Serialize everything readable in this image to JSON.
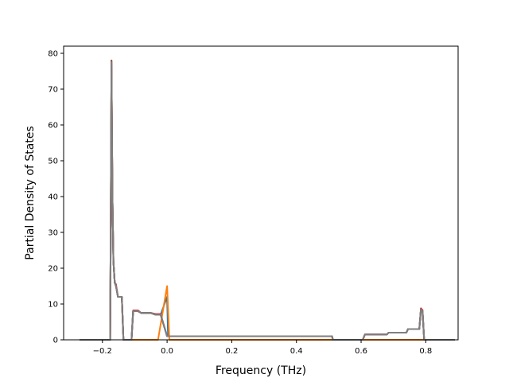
{
  "chart_data": {
    "type": "line",
    "title": "",
    "xlabel": "Frequency (THz)",
    "ylabel": "Partial Density of States",
    "xlim": [
      -0.32,
      0.9
    ],
    "ylim": [
      0,
      82
    ],
    "xticks": [
      -0.2,
      0.0,
      0.2,
      0.4,
      0.6,
      0.8
    ],
    "xtick_labels": [
      "−0.2",
      "0.0",
      "0.2",
      "0.4",
      "0.6",
      "0.8"
    ],
    "yticks": [
      0,
      10,
      20,
      30,
      40,
      50,
      60,
      70,
      80
    ],
    "ytick_labels": [
      "0",
      "10",
      "20",
      "30",
      "40",
      "50",
      "60",
      "70",
      "80"
    ],
    "grid": false,
    "legend": "none",
    "series": [
      {
        "color": "#1f77b4",
        "points": [
          [
            -0.27,
            0
          ],
          [
            -0.176,
            0
          ],
          [
            -0.172,
            72
          ],
          [
            -0.169,
            40
          ],
          [
            -0.166,
            22
          ],
          [
            -0.162,
            16
          ],
          [
            -0.158,
            15
          ],
          [
            -0.152,
            12
          ],
          [
            -0.14,
            12
          ],
          [
            -0.135,
            0
          ],
          [
            -0.11,
            0
          ],
          [
            -0.105,
            8
          ],
          [
            -0.09,
            8
          ],
          [
            -0.08,
            7.5
          ],
          [
            -0.05,
            7.5
          ],
          [
            -0.035,
            7
          ],
          [
            -0.02,
            7
          ],
          [
            0.0,
            12
          ],
          [
            0.003,
            1
          ],
          [
            0.07,
            1
          ],
          [
            0.15,
            1
          ],
          [
            0.51,
            1
          ],
          [
            0.513,
            0
          ],
          [
            0.605,
            0
          ],
          [
            0.612,
            1.5
          ],
          [
            0.68,
            1.5
          ],
          [
            0.685,
            2
          ],
          [
            0.74,
            2
          ],
          [
            0.745,
            3
          ],
          [
            0.78,
            3
          ],
          [
            0.785,
            8.5
          ],
          [
            0.79,
            8
          ],
          [
            0.795,
            0
          ],
          [
            0.89,
            0
          ]
        ]
      },
      {
        "color": "#ff7f0e",
        "points": [
          [
            -0.27,
            0
          ],
          [
            -0.176,
            0
          ],
          [
            -0.172,
            78
          ],
          [
            -0.169,
            40
          ],
          [
            -0.166,
            22
          ],
          [
            -0.162,
            16
          ],
          [
            -0.158,
            15
          ],
          [
            -0.152,
            12
          ],
          [
            -0.14,
            12
          ],
          [
            -0.135,
            0
          ],
          [
            -0.028,
            0
          ],
          [
            0.0,
            15
          ],
          [
            0.007,
            0
          ],
          [
            0.89,
            0
          ]
        ]
      },
      {
        "color": "#2ca02c",
        "points": [
          [
            -0.27,
            0
          ],
          [
            -0.176,
            0
          ],
          [
            -0.172,
            76
          ],
          [
            -0.169,
            40
          ],
          [
            -0.166,
            22
          ],
          [
            -0.162,
            16
          ],
          [
            -0.158,
            15
          ],
          [
            -0.152,
            12
          ],
          [
            -0.14,
            12
          ],
          [
            -0.135,
            0
          ],
          [
            -0.11,
            0
          ],
          [
            -0.105,
            8
          ],
          [
            -0.09,
            8
          ],
          [
            -0.08,
            7.5
          ],
          [
            -0.05,
            7.5
          ],
          [
            -0.035,
            7
          ],
          [
            -0.02,
            7
          ],
          [
            0.0,
            1
          ],
          [
            0.07,
            1
          ],
          [
            0.15,
            1
          ],
          [
            0.51,
            1
          ],
          [
            0.513,
            0
          ],
          [
            0.605,
            0
          ],
          [
            0.612,
            1.5
          ],
          [
            0.68,
            1.5
          ],
          [
            0.685,
            2
          ],
          [
            0.74,
            2
          ],
          [
            0.745,
            3
          ],
          [
            0.78,
            3
          ],
          [
            0.785,
            8.5
          ],
          [
            0.79,
            8
          ],
          [
            0.795,
            0
          ],
          [
            0.89,
            0
          ]
        ]
      },
      {
        "color": "#d62728",
        "points": [
          [
            -0.27,
            0
          ],
          [
            -0.176,
            0
          ],
          [
            -0.172,
            78
          ],
          [
            -0.169,
            40
          ],
          [
            -0.166,
            22
          ],
          [
            -0.162,
            16
          ],
          [
            -0.158,
            15.5
          ],
          [
            -0.152,
            12
          ],
          [
            -0.14,
            12
          ],
          [
            -0.135,
            0
          ],
          [
            -0.11,
            0
          ],
          [
            -0.105,
            8.2
          ],
          [
            -0.09,
            8.2
          ],
          [
            -0.08,
            7.5
          ],
          [
            -0.05,
            7.5
          ],
          [
            -0.035,
            7.2
          ],
          [
            -0.02,
            7.2
          ],
          [
            0.0,
            1
          ],
          [
            0.07,
            1
          ],
          [
            0.15,
            1
          ],
          [
            0.51,
            1
          ],
          [
            0.513,
            0
          ],
          [
            0.605,
            0
          ],
          [
            0.612,
            1.5
          ],
          [
            0.68,
            1.5
          ],
          [
            0.685,
            2
          ],
          [
            0.74,
            2
          ],
          [
            0.745,
            3
          ],
          [
            0.78,
            3
          ],
          [
            0.785,
            8.8
          ],
          [
            0.79,
            8.3
          ],
          [
            0.795,
            0
          ],
          [
            0.89,
            0
          ]
        ]
      },
      {
        "color": "#9467bd",
        "points": [
          [
            -0.27,
            0
          ],
          [
            -0.176,
            0
          ],
          [
            -0.172,
            77
          ],
          [
            -0.169,
            40
          ],
          [
            -0.166,
            22
          ],
          [
            -0.162,
            16
          ],
          [
            -0.158,
            15
          ],
          [
            -0.152,
            12
          ],
          [
            -0.14,
            12
          ],
          [
            -0.135,
            0
          ],
          [
            -0.11,
            0
          ],
          [
            -0.105,
            8
          ],
          [
            -0.09,
            8
          ],
          [
            -0.08,
            7.5
          ],
          [
            -0.05,
            7.5
          ],
          [
            -0.035,
            7
          ],
          [
            -0.02,
            7
          ],
          [
            0.0,
            1
          ],
          [
            0.07,
            1
          ],
          [
            0.15,
            1
          ],
          [
            0.51,
            1
          ],
          [
            0.513,
            0
          ],
          [
            0.605,
            0
          ],
          [
            0.612,
            1.5
          ],
          [
            0.68,
            1.5
          ],
          [
            0.685,
            2
          ],
          [
            0.74,
            2
          ],
          [
            0.745,
            3
          ],
          [
            0.78,
            3
          ],
          [
            0.785,
            8.5
          ],
          [
            0.79,
            8
          ],
          [
            0.795,
            0
          ],
          [
            0.89,
            0
          ]
        ]
      },
      {
        "color": "#8c564b",
        "points": [
          [
            -0.27,
            0
          ],
          [
            -0.176,
            0
          ],
          [
            -0.172,
            78
          ],
          [
            -0.169,
            40
          ],
          [
            -0.166,
            22
          ],
          [
            -0.162,
            16
          ],
          [
            -0.158,
            15
          ],
          [
            -0.152,
            12
          ],
          [
            -0.14,
            12
          ],
          [
            -0.135,
            0
          ],
          [
            -0.11,
            0
          ],
          [
            -0.105,
            8
          ],
          [
            -0.09,
            8
          ],
          [
            -0.08,
            7.5
          ],
          [
            -0.05,
            7.5
          ],
          [
            -0.035,
            7
          ],
          [
            -0.02,
            7
          ],
          [
            0.0,
            1
          ],
          [
            0.07,
            1
          ],
          [
            0.15,
            1
          ],
          [
            0.51,
            1
          ],
          [
            0.513,
            0
          ],
          [
            0.605,
            0
          ],
          [
            0.612,
            1.5
          ],
          [
            0.68,
            1.5
          ],
          [
            0.685,
            2
          ],
          [
            0.74,
            2
          ],
          [
            0.745,
            3
          ],
          [
            0.78,
            3
          ],
          [
            0.785,
            8.5
          ],
          [
            0.79,
            8
          ],
          [
            0.795,
            0
          ],
          [
            0.89,
            0
          ]
        ]
      },
      {
        "color": "#7f7f7f",
        "points": [
          [
            -0.27,
            0
          ],
          [
            -0.176,
            0
          ],
          [
            -0.172,
            77.5
          ],
          [
            -0.169,
            40
          ],
          [
            -0.166,
            22
          ],
          [
            -0.162,
            16
          ],
          [
            -0.158,
            15
          ],
          [
            -0.152,
            12
          ],
          [
            -0.14,
            12
          ],
          [
            -0.135,
            0
          ],
          [
            -0.11,
            0
          ],
          [
            -0.105,
            8
          ],
          [
            -0.09,
            8
          ],
          [
            -0.08,
            7.5
          ],
          [
            -0.05,
            7.5
          ],
          [
            -0.035,
            7
          ],
          [
            -0.02,
            7
          ],
          [
            0.0,
            1
          ],
          [
            0.07,
            1
          ],
          [
            0.15,
            1
          ],
          [
            0.51,
            1
          ],
          [
            0.513,
            0
          ],
          [
            0.605,
            0
          ],
          [
            0.612,
            1.5
          ],
          [
            0.68,
            1.5
          ],
          [
            0.685,
            2
          ],
          [
            0.74,
            2
          ],
          [
            0.745,
            3
          ],
          [
            0.78,
            3
          ],
          [
            0.785,
            8.5
          ],
          [
            0.79,
            8
          ],
          [
            0.795,
            0
          ],
          [
            0.89,
            0
          ]
        ]
      }
    ]
  }
}
